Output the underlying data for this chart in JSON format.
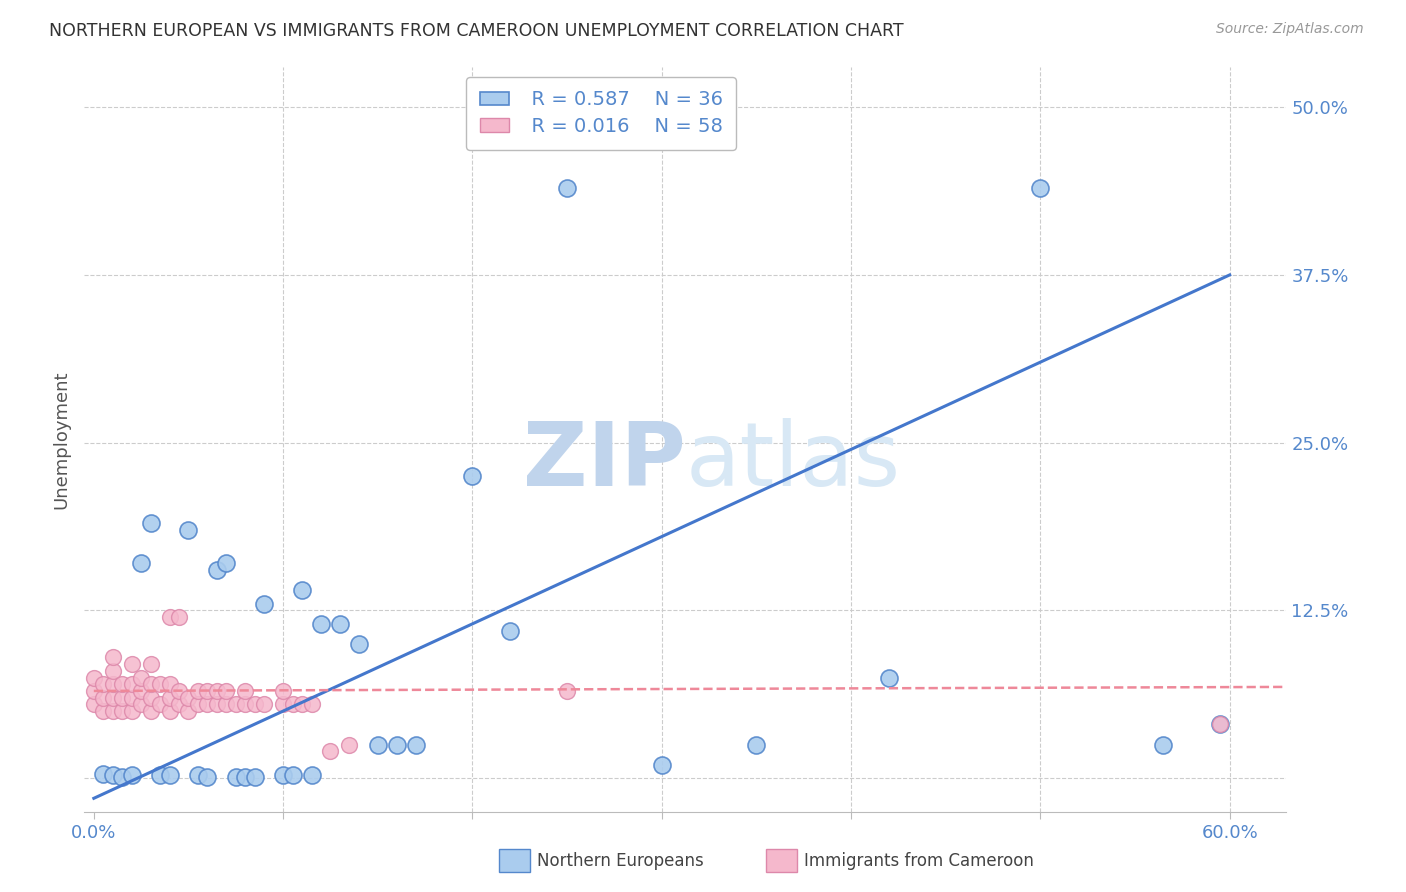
{
  "title": "NORTHERN EUROPEAN VS IMMIGRANTS FROM CAMEROON UNEMPLOYMENT CORRELATION CHART",
  "source": "Source: ZipAtlas.com",
  "ylabel": "Unemployment",
  "xlim": [
    -0.005,
    0.63
  ],
  "ylim": [
    -0.025,
    0.53
  ],
  "blue_color": "#aaccee",
  "blue_edge_color": "#5588cc",
  "pink_color": "#f5b8cc",
  "pink_edge_color": "#dd88aa",
  "blue_line_color": "#4477cc",
  "pink_line_color": "#ee8899",
  "watermark_color": "#d5e5f5",
  "grid_color": "#cccccc",
  "background_color": "#ffffff",
  "title_color": "#333333",
  "tick_color": "#5588cc",
  "legend_r_blue": "R = 0.587",
  "legend_n_blue": "N = 36",
  "legend_r_pink": "R = 0.016",
  "legend_n_pink": "N = 58",
  "blue_x": [
    0.005,
    0.01,
    0.015,
    0.02,
    0.025,
    0.03,
    0.035,
    0.04,
    0.05,
    0.055,
    0.06,
    0.065,
    0.07,
    0.075,
    0.08,
    0.085,
    0.09,
    0.1,
    0.105,
    0.11,
    0.115,
    0.12,
    0.13,
    0.14,
    0.15,
    0.16,
    0.17,
    0.2,
    0.22,
    0.25,
    0.3,
    0.35,
    0.42,
    0.5,
    0.565,
    0.595
  ],
  "blue_y": [
    0.003,
    0.002,
    0.001,
    0.002,
    0.16,
    0.19,
    0.002,
    0.002,
    0.185,
    0.002,
    0.001,
    0.155,
    0.16,
    0.001,
    0.001,
    0.001,
    0.13,
    0.002,
    0.002,
    0.14,
    0.002,
    0.115,
    0.115,
    0.1,
    0.025,
    0.025,
    0.025,
    0.225,
    0.11,
    0.44,
    0.01,
    0.025,
    0.075,
    0.44,
    0.025,
    0.04
  ],
  "pink_x": [
    0.0,
    0.0,
    0.0,
    0.005,
    0.005,
    0.005,
    0.01,
    0.01,
    0.01,
    0.01,
    0.01,
    0.015,
    0.015,
    0.015,
    0.02,
    0.02,
    0.02,
    0.02,
    0.025,
    0.025,
    0.025,
    0.03,
    0.03,
    0.03,
    0.03,
    0.035,
    0.035,
    0.04,
    0.04,
    0.04,
    0.04,
    0.045,
    0.045,
    0.045,
    0.05,
    0.05,
    0.055,
    0.055,
    0.06,
    0.06,
    0.065,
    0.065,
    0.07,
    0.07,
    0.075,
    0.08,
    0.08,
    0.085,
    0.09,
    0.1,
    0.1,
    0.105,
    0.11,
    0.115,
    0.125,
    0.135,
    0.25,
    0.595
  ],
  "pink_y": [
    0.055,
    0.065,
    0.075,
    0.05,
    0.06,
    0.07,
    0.05,
    0.06,
    0.07,
    0.08,
    0.09,
    0.05,
    0.06,
    0.07,
    0.05,
    0.06,
    0.07,
    0.085,
    0.055,
    0.065,
    0.075,
    0.05,
    0.06,
    0.07,
    0.085,
    0.055,
    0.07,
    0.05,
    0.06,
    0.07,
    0.12,
    0.055,
    0.065,
    0.12,
    0.05,
    0.06,
    0.055,
    0.065,
    0.055,
    0.065,
    0.055,
    0.065,
    0.055,
    0.065,
    0.055,
    0.055,
    0.065,
    0.055,
    0.055,
    0.055,
    0.065,
    0.055,
    0.055,
    0.055,
    0.02,
    0.025,
    0.065,
    0.04
  ],
  "blue_trend_x0": 0.0,
  "blue_trend_y0": -0.015,
  "blue_trend_x1": 0.6,
  "blue_trend_y1": 0.375,
  "pink_trend_x0": 0.0,
  "pink_trend_y0": 0.065,
  "pink_trend_x1": 0.63,
  "pink_trend_y1": 0.068,
  "y_ticks": [
    0.0,
    0.125,
    0.25,
    0.375,
    0.5
  ],
  "y_tick_labels": [
    "",
    "12.5%",
    "25.0%",
    "37.5%",
    "50.0%"
  ],
  "x_ticks": [
    0.0,
    0.1,
    0.2,
    0.3,
    0.4,
    0.5,
    0.6
  ],
  "x_tick_labels": [
    "0.0%",
    "",
    "",
    "",
    "",
    "",
    "60.0%"
  ]
}
